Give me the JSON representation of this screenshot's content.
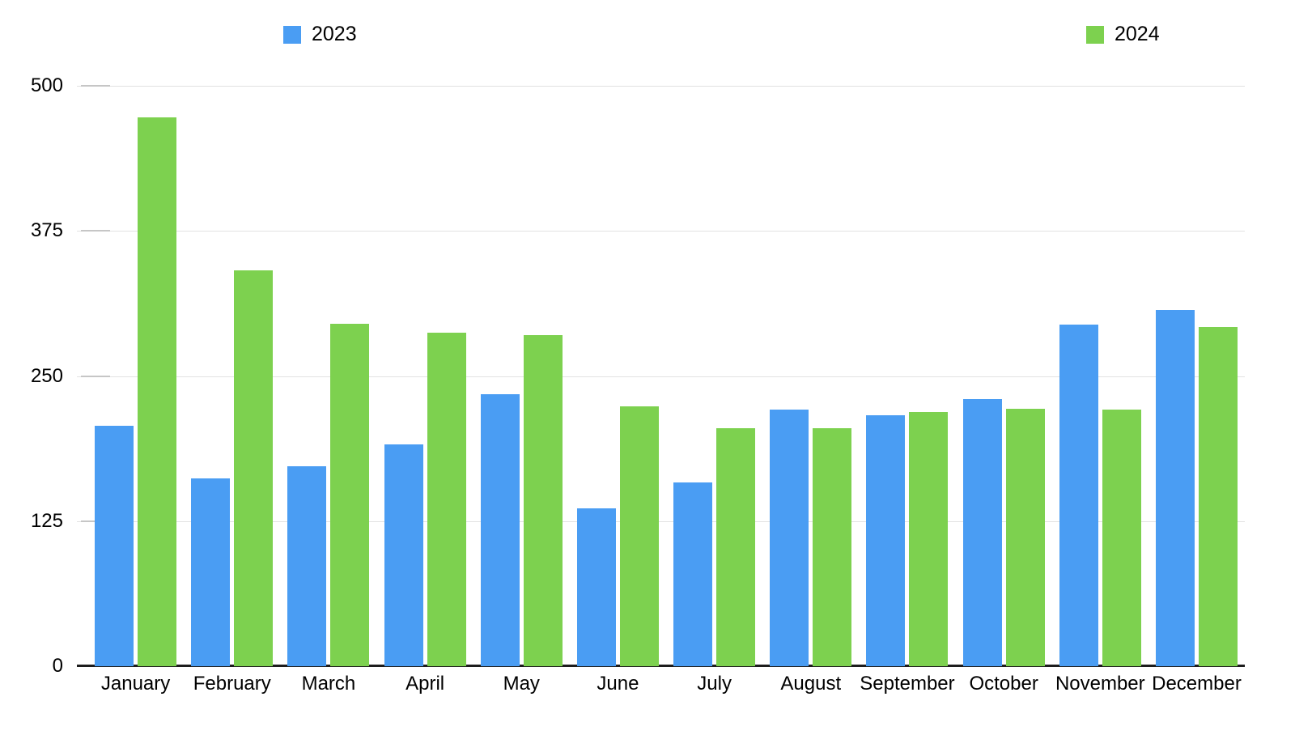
{
  "chart_data": {
    "type": "bar",
    "title": "",
    "xlabel": "",
    "ylabel": "",
    "categories": [
      "January",
      "February",
      "March",
      "April",
      "May",
      "June",
      "July",
      "August",
      "September",
      "October",
      "November",
      "December"
    ],
    "series": [
      {
        "name": "2023",
        "color": "#4a9df3",
        "values": [
          207,
          162,
          172,
          191,
          234,
          136,
          158,
          221,
          216,
          230,
          294,
          307
        ]
      },
      {
        "name": "2024",
        "color": "#7dd14f",
        "values": [
          473,
          341,
          295,
          287,
          285,
          224,
          205,
          205,
          219,
          222,
          221,
          292
        ]
      }
    ],
    "ylim": [
      0,
      500
    ],
    "yticks": [
      0,
      125,
      250,
      375,
      500
    ],
    "grid": true,
    "legend_position": "top",
    "colors": {
      "grid": "#e2e2e2",
      "axis": "#1d1d1d",
      "text": "#000000"
    }
  }
}
